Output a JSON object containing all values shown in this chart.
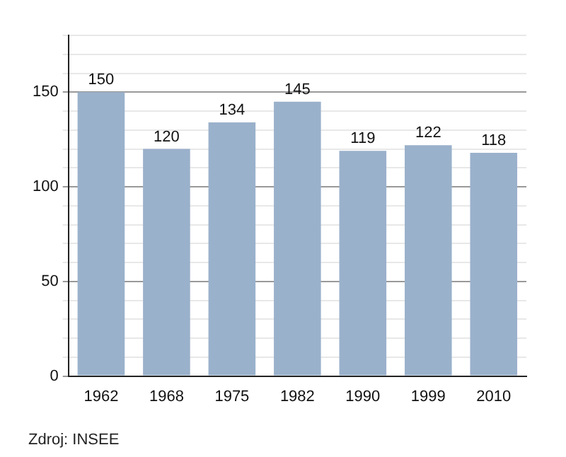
{
  "chart_data": {
    "type": "bar",
    "categories": [
      "1962",
      "1968",
      "1975",
      "1982",
      "1990",
      "1999",
      "2010"
    ],
    "values": [
      150,
      120,
      134,
      145,
      119,
      122,
      118
    ],
    "color": "#9ab1cb",
    "ylim": [
      0,
      180
    ],
    "yticks": [
      0,
      {
        "value": 10,
        "label": null
      },
      {
        "value": 20,
        "label": null
      },
      {
        "value": 30,
        "label": null
      },
      {
        "value": 40,
        "label": null
      },
      50,
      {
        "value": 60,
        "label": null
      },
      {
        "value": 70,
        "label": null
      },
      {
        "value": 80,
        "label": null
      },
      {
        "value": 90,
        "label": null
      },
      100,
      {
        "value": 110,
        "label": null
      },
      {
        "value": 120,
        "label": null
      },
      {
        "value": 130,
        "label": null
      },
      {
        "value": 140,
        "label": null
      },
      150,
      {
        "value": 160,
        "label": null
      },
      {
        "value": 170,
        "label": null
      },
      {
        "value": 180,
        "label": null
      }
    ],
    "grid": "y",
    "data_labels": true,
    "annotations": [
      "Zdroj: INSEE"
    ]
  }
}
